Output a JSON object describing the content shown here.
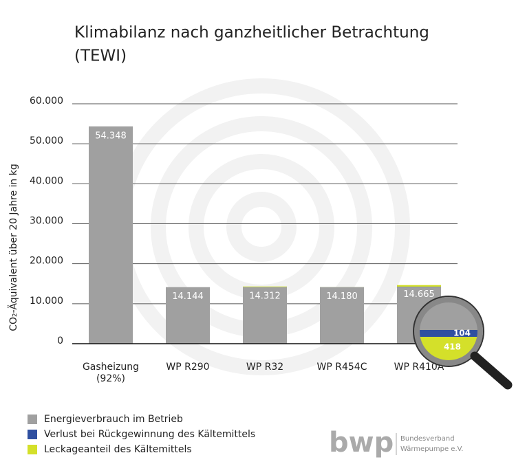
{
  "chart_data": {
    "type": "stacked_bar",
    "title": [
      "Klimabilanz nach ganzheitlicher Betrachtung",
      "(TEWI)"
    ],
    "y_label": "CO₂-Äquivalent über 20 Jahre in kg",
    "categories": [
      "Gasheizung (92%)",
      "WP R290",
      "WP R32",
      "WP R454C",
      "WP R410A"
    ],
    "series": [
      {
        "name": "Energieverbrauch im Betrieb",
        "color": "#a0a0a0",
        "values": [
          54348,
          14140,
          14130,
          14150,
          14143
        ]
      },
      {
        "name": "Verlust bei Rückgewinnung des Kältemittels",
        "color": "#2f4fa0",
        "values": [
          0,
          1,
          32,
          10,
          104
        ]
      },
      {
        "name": "Leckageanteil des Kältemittels",
        "color": "#d4e02a",
        "values": [
          0,
          3,
          150,
          20,
          418
        ]
      }
    ],
    "totals": {
      "values": [
        54348,
        14144,
        14312,
        14180,
        14665
      ],
      "value_labels": [
        "54.348",
        "14.144",
        "14.312",
        "14.180",
        "14.665"
      ]
    },
    "ylim": [
      0,
      60000
    ],
    "yticks": [
      0,
      {
        "value": 10000,
        "label": "10.000"
      },
      {
        "value": 20000,
        "label": "20.000"
      },
      {
        "value": 30000,
        "label": "30.000"
      },
      {
        "value": 40000,
        "label": "40.000"
      },
      {
        "value": 50000,
        "label": "50.000"
      },
      {
        "value": 60000,
        "label": "60.000"
      }
    ],
    "grid": true,
    "legend": "bottom-left"
  },
  "logo": {
    "mark": "bwp",
    "line1": "Bundesverband",
    "line2": "Wärmepumpe e.V."
  }
}
